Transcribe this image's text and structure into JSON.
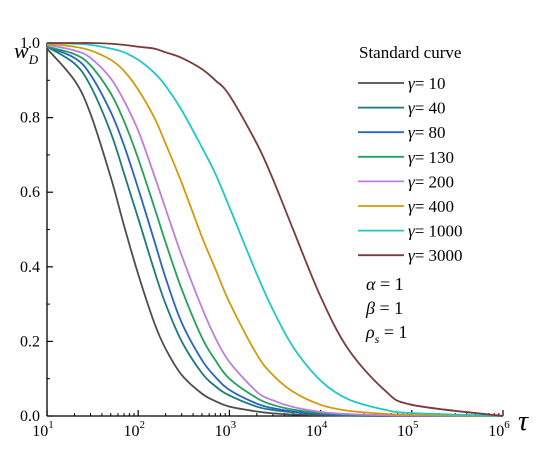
{
  "chart_data": {
    "type": "line",
    "xscale": "log",
    "xlim": [
      10,
      1000000
    ],
    "ylim": [
      0,
      1
    ],
    "ylabel_main": "w",
    "ylabel_sub": "D",
    "xlabel": "τ",
    "x_ticks": [
      {
        "base": "10",
        "exp": "1",
        "value": 10
      },
      {
        "base": "10",
        "exp": "2",
        "value": 100
      },
      {
        "base": "10",
        "exp": "3",
        "value": 1000
      },
      {
        "base": "10",
        "exp": "4",
        "value": 10000
      },
      {
        "base": "10",
        "exp": "5",
        "value": 100000
      },
      {
        "base": "10",
        "exp": "6",
        "value": 1000000
      }
    ],
    "y_ticks": [
      {
        "label": "0.0",
        "value": 0
      },
      {
        "label": "0.2",
        "value": 0.2
      },
      {
        "label": "0.4",
        "value": 0.4
      },
      {
        "label": "0.6",
        "value": 0.6
      },
      {
        "label": "0.8",
        "value": 0.8
      },
      {
        "label": "1.0",
        "value": 1.0
      }
    ],
    "x": [
      10,
      20,
      30,
      50,
      70,
      100,
      150,
      200,
      300,
      500,
      700,
      1000,
      2000,
      3000,
      5000,
      10000,
      20000,
      50000,
      100000,
      1000000
    ],
    "legend_title": "Standard curve",
    "legend_placement": "top-right",
    "series": [
      {
        "name": "γ= 10",
        "color": "#4d4d4d",
        "values": [
          0.985,
          0.9,
          0.81,
          0.64,
          0.51,
          0.38,
          0.25,
          0.18,
          0.11,
          0.06,
          0.04,
          0.025,
          0.012,
          0.007,
          0.004,
          0.002,
          0.001,
          0.0,
          0.0,
          0.0
        ]
      },
      {
        "name": "γ= 40",
        "color": "#1b7a7a",
        "values": [
          0.99,
          0.945,
          0.885,
          0.76,
          0.65,
          0.53,
          0.39,
          0.3,
          0.2,
          0.115,
          0.08,
          0.055,
          0.025,
          0.016,
          0.01,
          0.005,
          0.002,
          0.001,
          0.0,
          0.0
        ]
      },
      {
        "name": "γ= 80",
        "color": "#2663c8",
        "values": [
          0.99,
          0.96,
          0.915,
          0.815,
          0.725,
          0.61,
          0.47,
          0.37,
          0.25,
          0.15,
          0.105,
          0.07,
          0.033,
          0.021,
          0.012,
          0.006,
          0.003,
          0.001,
          0.0,
          0.0
        ]
      },
      {
        "name": "γ= 130",
        "color": "#22a05a",
        "values": [
          0.99,
          0.97,
          0.94,
          0.865,
          0.79,
          0.69,
          0.56,
          0.465,
          0.34,
          0.21,
          0.15,
          0.1,
          0.048,
          0.03,
          0.017,
          0.008,
          0.004,
          0.002,
          0.001,
          0.0
        ]
      },
      {
        "name": "γ= 200",
        "color": "#bb7fe0",
        "values": [
          0.995,
          0.98,
          0.96,
          0.905,
          0.845,
          0.765,
          0.645,
          0.555,
          0.43,
          0.29,
          0.21,
          0.145,
          0.065,
          0.042,
          0.024,
          0.011,
          0.005,
          0.002,
          0.001,
          0.0
        ]
      },
      {
        "name": "γ= 400",
        "color": "#d49a0a",
        "values": [
          0.998,
          0.99,
          0.98,
          0.955,
          0.925,
          0.875,
          0.8,
          0.73,
          0.625,
          0.48,
          0.395,
          0.305,
          0.165,
          0.11,
          0.065,
          0.03,
          0.014,
          0.006,
          0.003,
          0.0
        ]
      },
      {
        "name": "γ= 1000",
        "color": "#1fc8c8",
        "values": [
          1.0,
          0.998,
          0.995,
          0.985,
          0.975,
          0.955,
          0.92,
          0.885,
          0.82,
          0.72,
          0.65,
          0.56,
          0.38,
          0.285,
          0.185,
          0.095,
          0.045,
          0.017,
          0.008,
          0.0
        ]
      },
      {
        "name": "γ= 3000",
        "color": "#7a3b3b",
        "values": [
          1.0,
          1.0,
          1.0,
          0.998,
          0.995,
          0.99,
          0.985,
          0.975,
          0.96,
          0.93,
          0.9,
          0.86,
          0.73,
          0.635,
          0.5,
          0.32,
          0.18,
          0.07,
          0.03,
          0.0
        ]
      }
    ],
    "param_labels": [
      {
        "sym": "α",
        "sub": "",
        "rest": " = 1"
      },
      {
        "sym": "β",
        "sub": "",
        "rest": " = 1"
      },
      {
        "sym": "ρ",
        "sub": "s",
        "rest": " = 1"
      }
    ]
  }
}
